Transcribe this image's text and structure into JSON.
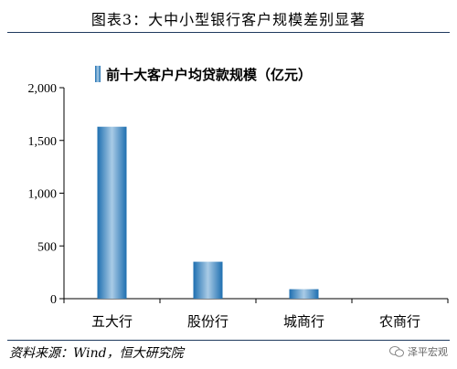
{
  "figure": {
    "title": "图表3：大中小型银行客户规模差别显著",
    "source": "资料来源：Wind，恒大研究院",
    "watermark": "泽平宏观"
  },
  "chart_data": {
    "type": "bar",
    "categories": [
      "五大行",
      "股份行",
      "城商行",
      "农商行"
    ],
    "series": [
      {
        "name": "前十大客户户均贷款规模（亿元）",
        "values": [
          1630,
          350,
          90,
          0
        ]
      }
    ],
    "ylim": [
      0,
      2000
    ],
    "yticks": [
      0,
      500,
      1000,
      1500,
      2000
    ],
    "ytick_labels": [
      "0",
      "500",
      "1,000",
      "1,500",
      "2,000"
    ],
    "legend_position": "top-left",
    "grid": false,
    "colors": {
      "bar_light": "#a9cbe6",
      "bar_dark": "#1e6fb0",
      "axis": "#000000"
    }
  }
}
